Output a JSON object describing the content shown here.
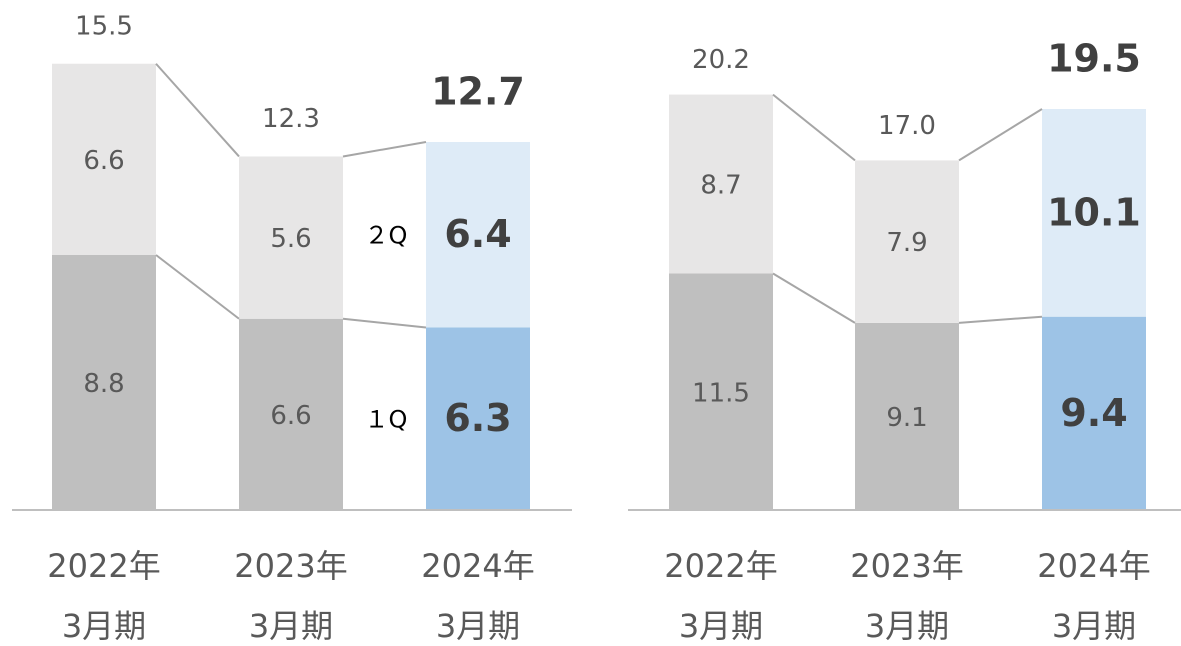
{
  "chart_data": [
    {
      "type": "stacked_bar",
      "categories": [
        [
          "2022年",
          "3月期"
        ],
        [
          "2023年",
          "3月期"
        ],
        [
          "2024年",
          "3月期"
        ]
      ],
      "series": [
        {
          "name": "１Q",
          "colors": [
            "#bfbfbf",
            "#bfbfbf",
            "#9dc3e6"
          ],
          "values": [
            8.8,
            6.6,
            6.3
          ]
        },
        {
          "name": "２Q",
          "colors": [
            "#e7e6e6",
            "#e7e6e6",
            "#deebf7"
          ],
          "values": [
            6.6,
            5.6,
            6.4
          ]
        }
      ],
      "totals": [
        15.5,
        12.3,
        12.7
      ],
      "highlight_index": 2,
      "ylim": [
        0,
        17.6
      ]
    },
    {
      "type": "stacked_bar",
      "categories": [
        [
          "2022年",
          "3月期"
        ],
        [
          "2023年",
          "3月期"
        ],
        [
          "2024年",
          "3月期"
        ]
      ],
      "series": [
        {
          "colors": [
            "#bfbfbf",
            "#bfbfbf",
            "#9dc3e6"
          ],
          "values": [
            11.5,
            9.1,
            9.4
          ]
        },
        {
          "colors": [
            "#e7e6e6",
            "#e7e6e6",
            "#deebf7"
          ],
          "values": [
            8.7,
            7.9,
            10.1
          ]
        }
      ],
      "totals": [
        20.2,
        17.0,
        19.5
      ],
      "value_labels": {
        "totals": [
          "20.2",
          "17.0",
          "19.5"
        ]
      },
      "highlight_index": 2,
      "ylim": [
        0,
        24.8
      ]
    }
  ]
}
